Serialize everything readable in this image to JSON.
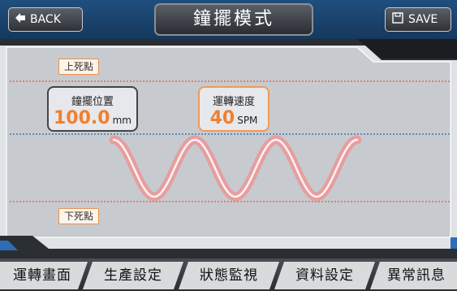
{
  "header": {
    "back_label": "BACK",
    "title": "鐘擺模式",
    "save_label": "SAVE",
    "back_icon": "left-arrow-icon",
    "save_icon": "floppy-disk-icon"
  },
  "panel": {
    "top_limit_label": "上死點",
    "bottom_limit_label": "下死點",
    "position": {
      "label": "鐘擺位置",
      "value": "100.0",
      "unit": "mm"
    },
    "speed": {
      "label": "運轉速度",
      "value": "40",
      "unit": "SPM"
    },
    "wave_color": "#ff7a7a",
    "limit_line_color": "#e0563a",
    "center_line_color": "#2f5fa8"
  },
  "tabs": [
    {
      "label": "運轉畫面"
    },
    {
      "label": "生產設定"
    },
    {
      "label": "狀態監視"
    },
    {
      "label": "資料設定"
    },
    {
      "label": "異常訊息"
    }
  ]
}
